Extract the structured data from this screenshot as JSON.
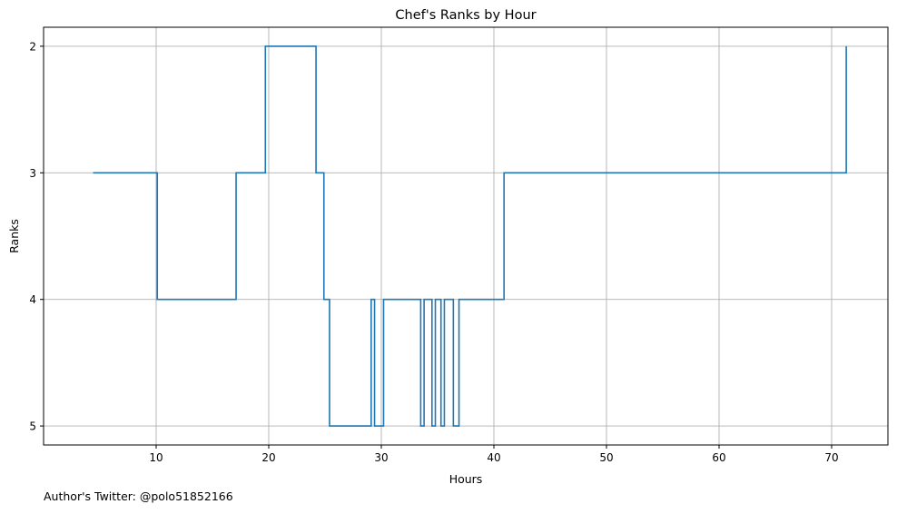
{
  "chart_data": {
    "type": "line",
    "style": "step",
    "title": "Chef's Ranks by Hour",
    "xlabel": "Hours",
    "ylabel": "Ranks",
    "xlim": [
      0,
      75
    ],
    "ylim": [
      5,
      2
    ],
    "y_inverted": true,
    "grid": true,
    "line_color": "#1f77b4",
    "xticks": [
      10,
      20,
      30,
      40,
      50,
      60,
      70
    ],
    "xtick_labels": [
      "10",
      "20",
      "30",
      "40",
      "50",
      "60",
      "70"
    ],
    "yticks": [
      2,
      3,
      4,
      5
    ],
    "ytick_labels": [
      "2",
      "3",
      "4",
      "5"
    ],
    "series": [
      {
        "x": [
          4.4,
          10.1,
          17.1,
          19.7,
          24.2,
          24.9,
          25.4,
          29.1,
          29.4,
          30.2,
          33.5,
          33.8,
          34.5,
          34.8,
          35.3,
          35.6,
          36.4,
          36.9,
          40.9,
          71.3
        ],
        "y": [
          3,
          4,
          3,
          2,
          3,
          4,
          5,
          4,
          5,
          4,
          5,
          4,
          5,
          4,
          5,
          4,
          5,
          4,
          3,
          2
        ]
      }
    ]
  },
  "footer": {
    "note": "Author's Twitter: @polo51852166"
  }
}
